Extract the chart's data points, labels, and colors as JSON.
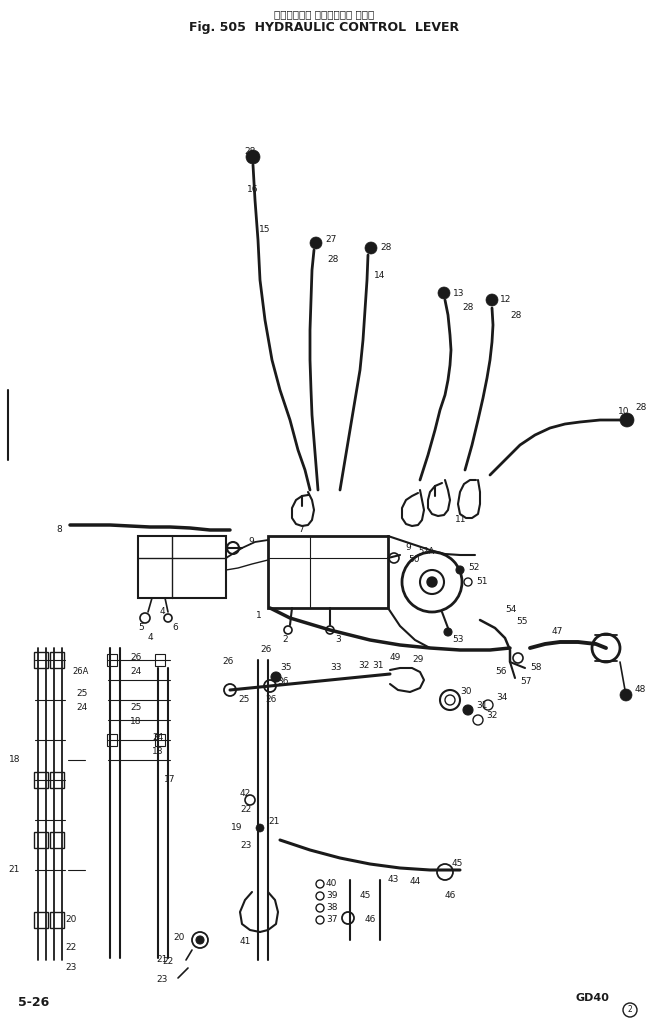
{
  "title_jp": "ハイドリック コントロール レバー",
  "title_en": "Fig. 505  HYDRAULIC CONTROL  LEVER",
  "page_label": "5-26",
  "model_label": "GD40",
  "bg_color": "#ffffff",
  "line_color": "#1a1a1a",
  "fig_width": 6.48,
  "fig_height": 10.24,
  "dpi": 100
}
